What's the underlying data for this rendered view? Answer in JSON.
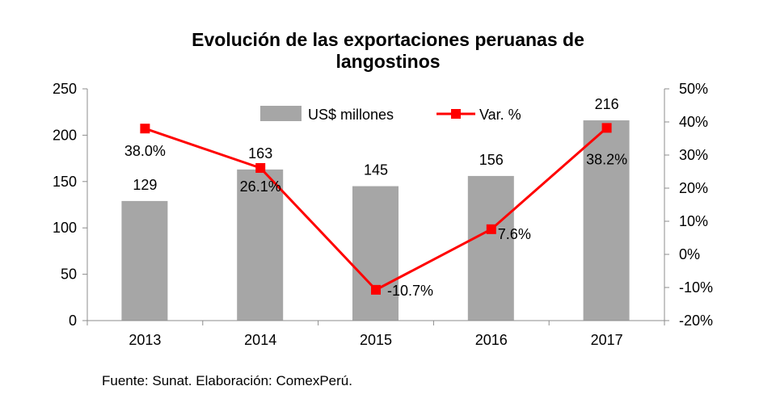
{
  "chart_data": {
    "type": "bar",
    "title": "Evolución de las exportaciones peruanas de langostinos",
    "categories": [
      "2013",
      "2014",
      "2015",
      "2016",
      "2017"
    ],
    "series": [
      {
        "name": "US$ millones",
        "type": "bar",
        "axis": "left",
        "values": [
          129,
          163,
          145,
          156,
          216
        ],
        "color": "#a6a6a6"
      },
      {
        "name": "Var. %",
        "type": "line",
        "axis": "right",
        "values": [
          38.0,
          26.1,
          -10.7,
          7.6,
          38.2
        ],
        "color": "#ff0000"
      }
    ],
    "data_labels": {
      "bars": [
        "129",
        "163",
        "145",
        "156",
        "216"
      ],
      "line": [
        "38.0%",
        "26.1%",
        "-10.7%",
        "7.6%",
        "38.2%"
      ]
    },
    "y_left": {
      "ylim": [
        0,
        250
      ],
      "ticks": [
        "0",
        "50",
        "100",
        "150",
        "200",
        "250"
      ]
    },
    "y_right": {
      "ylim": [
        -20,
        50
      ],
      "ticks": [
        "-20%",
        "-10%",
        "0%",
        "10%",
        "20%",
        "30%",
        "40%",
        "50%"
      ]
    },
    "grid": false,
    "legend": "top-center"
  },
  "source_note": "Fuente: Sunat. Elaboración: ComexPerú."
}
